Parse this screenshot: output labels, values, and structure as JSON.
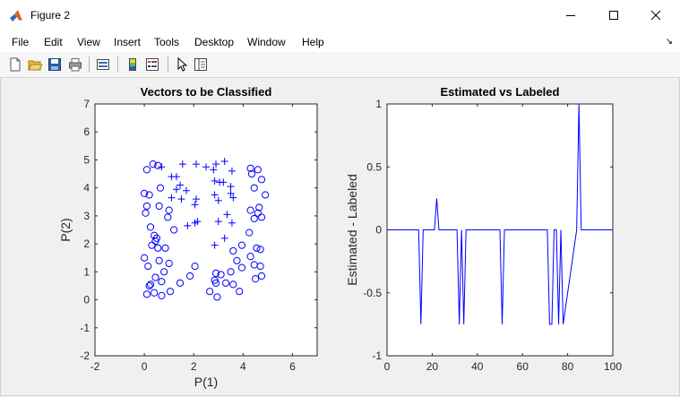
{
  "window": {
    "title": "Figure 2"
  },
  "menu": [
    "File",
    "Edit",
    "View",
    "Insert",
    "Tools",
    "Desktop",
    "Window",
    "Help"
  ],
  "toolbar": {
    "icons": [
      "new-figure-icon",
      "open-file-icon",
      "save-icon",
      "print-icon",
      "link-plot-icon",
      "insert-colorbar-icon",
      "insert-legend-icon",
      "pointer-icon",
      "property-inspector-icon"
    ]
  },
  "colors": {
    "data": "#0000ff",
    "axes": "#262626"
  },
  "chart_data": [
    {
      "type": "scatter",
      "title": "Vectors to be Classified",
      "xlabel": "P(1)",
      "ylabel": "P(2)",
      "xlim": [
        -2,
        7
      ],
      "ylim": [
        -2,
        7
      ],
      "xticks": [
        -2,
        0,
        2,
        4,
        6
      ],
      "yticks": [
        -2,
        -1,
        0,
        1,
        2,
        3,
        4,
        5,
        6,
        7
      ],
      "series": [
        {
          "marker": "o",
          "points": [
            [
              0.1,
              4.65
            ],
            [
              0.35,
              4.85
            ],
            [
              0.55,
              4.8
            ],
            [
              0.0,
              3.8
            ],
            [
              0.2,
              3.75
            ],
            [
              0.1,
              3.35
            ],
            [
              0.05,
              3.1
            ],
            [
              0.65,
              4.0
            ],
            [
              1.0,
              3.2
            ],
            [
              0.95,
              2.95
            ],
            [
              0.6,
              3.35
            ],
            [
              0.25,
              2.6
            ],
            [
              0.4,
              2.3
            ],
            [
              0.45,
              2.1
            ],
            [
              0.5,
              2.2
            ],
            [
              0.3,
              1.95
            ],
            [
              0.55,
              1.85
            ],
            [
              1.2,
              2.5
            ],
            [
              0.85,
              1.85
            ],
            [
              1.0,
              1.3
            ],
            [
              0.6,
              1.4
            ],
            [
              0.0,
              1.5
            ],
            [
              0.15,
              1.2
            ],
            [
              0.8,
              1.0
            ],
            [
              0.45,
              0.8
            ],
            [
              0.7,
              0.65
            ],
            [
              0.25,
              0.55
            ],
            [
              0.2,
              0.5
            ],
            [
              0.1,
              0.2
            ],
            [
              0.4,
              0.25
            ],
            [
              0.7,
              0.15
            ],
            [
              1.05,
              0.3
            ],
            [
              1.45,
              0.6
            ],
            [
              1.85,
              0.85
            ],
            [
              2.05,
              1.2
            ],
            [
              2.9,
              0.95
            ],
            [
              3.1,
              0.9
            ],
            [
              2.85,
              0.7
            ],
            [
              2.9,
              0.6
            ],
            [
              2.65,
              0.3
            ],
            [
              2.95,
              0.1
            ],
            [
              3.3,
              0.6
            ],
            [
              3.6,
              0.55
            ],
            [
              3.85,
              0.3
            ],
            [
              3.5,
              1.0
            ],
            [
              3.95,
              1.15
            ],
            [
              3.75,
              1.4
            ],
            [
              3.6,
              1.75
            ],
            [
              3.95,
              1.95
            ],
            [
              4.3,
              1.55
            ],
            [
              4.45,
              1.25
            ],
            [
              4.7,
              1.2
            ],
            [
              4.75,
              0.85
            ],
            [
              4.5,
              0.75
            ],
            [
              4.55,
              1.85
            ],
            [
              4.7,
              1.8
            ],
            [
              4.25,
              2.4
            ],
            [
              4.45,
              2.9
            ],
            [
              4.6,
              3.1
            ],
            [
              4.75,
              2.95
            ],
            [
              4.65,
              3.3
            ],
            [
              4.3,
              3.2
            ],
            [
              4.9,
              3.75
            ],
            [
              4.45,
              4.0
            ],
            [
              4.75,
              4.3
            ],
            [
              4.6,
              4.65
            ],
            [
              4.35,
              4.5
            ],
            [
              4.3,
              4.7
            ]
          ]
        },
        {
          "marker": "+",
          "points": [
            [
              0.7,
              4.75
            ],
            [
              1.1,
              4.4
            ],
            [
              1.3,
              4.4
            ],
            [
              1.55,
              4.85
            ],
            [
              2.1,
              4.85
            ],
            [
              1.45,
              4.1
            ],
            [
              1.7,
              3.9
            ],
            [
              1.3,
              3.95
            ],
            [
              1.5,
              3.6
            ],
            [
              1.1,
              3.65
            ],
            [
              2.1,
              3.6
            ],
            [
              2.05,
              3.4
            ],
            [
              1.75,
              2.65
            ],
            [
              2.05,
              2.75
            ],
            [
              2.15,
              2.8
            ],
            [
              2.5,
              4.75
            ],
            [
              2.8,
              4.65
            ],
            [
              2.9,
              4.85
            ],
            [
              3.25,
              4.95
            ],
            [
              3.55,
              4.6
            ],
            [
              3.05,
              4.2
            ],
            [
              3.2,
              4.2
            ],
            [
              2.85,
              4.25
            ],
            [
              3.5,
              4.05
            ],
            [
              2.85,
              3.75
            ],
            [
              3.5,
              3.8
            ],
            [
              3.6,
              3.65
            ],
            [
              3.0,
              3.55
            ],
            [
              3.35,
              3.05
            ],
            [
              3.55,
              2.75
            ],
            [
              3.0,
              2.8
            ],
            [
              2.85,
              1.95
            ],
            [
              3.25,
              2.2
            ]
          ]
        }
      ]
    },
    {
      "type": "line",
      "title": "Estimated vs Labeled",
      "xlabel": "",
      "ylabel": "Estimated - Labeled",
      "xlim": [
        0,
        100
      ],
      "ylim": [
        -1,
        1
      ],
      "xticks": [
        0,
        20,
        40,
        60,
        80,
        100
      ],
      "yticks": [
        -1,
        -0.5,
        0,
        0.5,
        1
      ],
      "x": [
        0,
        14,
        15,
        16,
        21,
        22,
        23,
        31,
        32,
        33,
        34,
        35,
        50,
        51,
        52,
        71,
        72,
        73,
        74,
        75,
        76,
        77,
        78,
        84,
        85,
        86,
        100
      ],
      "y": [
        0,
        0,
        -0.75,
        0,
        0,
        0.25,
        0,
        0,
        -0.75,
        0,
        -0.75,
        0,
        0,
        -0.75,
        0,
        0,
        -0.75,
        -0.75,
        0,
        0,
        -0.75,
        0,
        -0.75,
        0,
        1,
        0,
        0
      ]
    }
  ]
}
